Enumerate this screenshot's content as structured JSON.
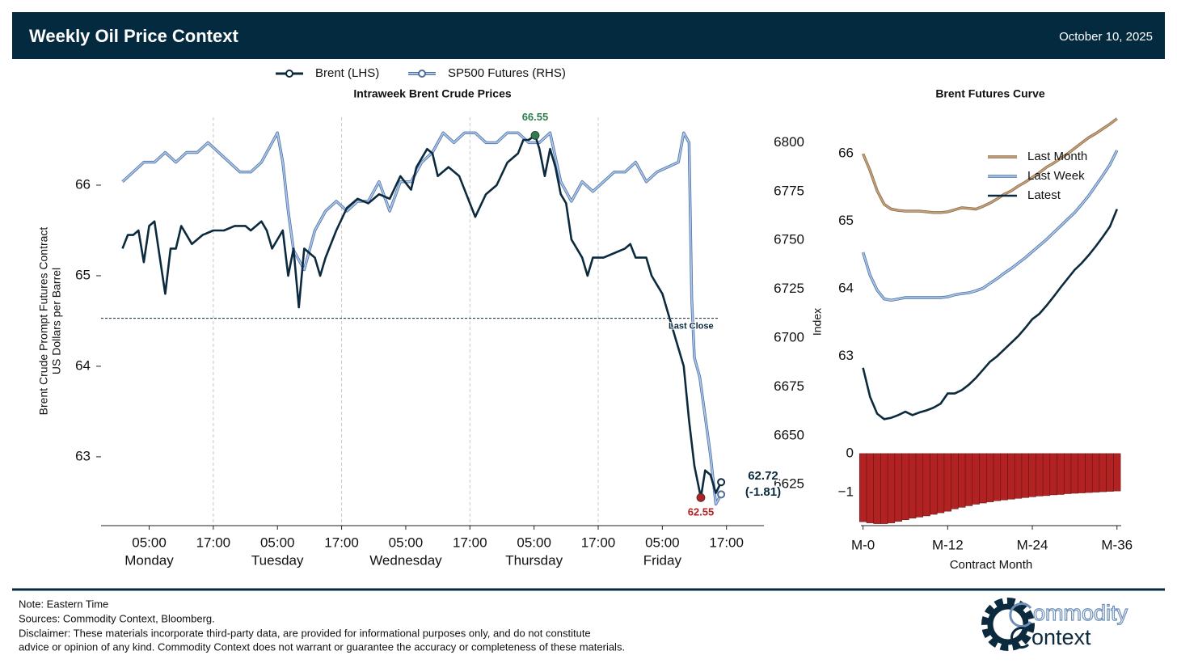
{
  "header": {
    "title": "Weekly Oil Price Context",
    "date": "October 10, 2025"
  },
  "chart_data": [
    {
      "type": "line",
      "title": "Intraweek Brent Crude Prices",
      "y_label": [
        "Brent Crude Prompt Futures Contract",
        "US Dollars per Barrel"
      ],
      "y2_label": "Index",
      "legend": "top",
      "xlim": [
        -4,
        120
      ],
      "ylim": [
        62.24,
        66.75
      ],
      "y2lim": [
        6604,
        6813
      ],
      "yticks": [
        63,
        64,
        65,
        66
      ],
      "y2ticks": [
        6625,
        6650,
        6675,
        6700,
        6725,
        6750,
        6775,
        6800
      ],
      "xticks": [
        {
          "value": 5,
          "label": [
            "05:00",
            "Monday"
          ]
        },
        {
          "value": 17,
          "label": [
            "17:00"
          ],
          "grid": true
        },
        {
          "value": 29,
          "label": [
            "05:00",
            "Tuesday"
          ]
        },
        {
          "value": 41,
          "label": [
            "17:00"
          ],
          "grid": true
        },
        {
          "value": 53,
          "label": [
            "05:00",
            "Wednesday"
          ]
        },
        {
          "value": 65,
          "label": [
            "17:00"
          ],
          "grid": true
        },
        {
          "value": 77,
          "label": [
            "05:00",
            "Thursday"
          ]
        },
        {
          "value": 89,
          "label": [
            "17:00"
          ],
          "grid": true
        },
        {
          "value": 101,
          "label": [
            "05:00",
            "Friday"
          ]
        },
        {
          "value": 113,
          "label": [
            "17:00"
          ]
        }
      ],
      "series": [
        {
          "name": "SP500 Futures (RHS)",
          "color": "#a9c6ef",
          "edge": "#4f6f9a",
          "axis": "y2",
          "x": [
            0,
            2,
            4,
            6,
            8,
            10,
            12,
            14,
            16,
            18,
            20,
            22,
            24,
            26,
            28,
            29,
            30,
            31,
            32,
            33,
            34,
            36,
            38,
            40,
            42,
            44,
            46,
            48,
            50,
            52,
            54,
            56,
            58,
            60,
            62,
            64,
            66,
            68,
            70,
            72,
            74,
            76,
            78,
            80,
            82,
            84,
            86,
            88,
            90,
            92,
            94,
            96,
            98,
            100,
            104,
            105,
            106,
            106.5,
            107,
            108,
            109,
            110,
            111,
            112
          ],
          "values": [
            6780,
            6785,
            6790,
            6790,
            6795,
            6790,
            6795,
            6795,
            6800,
            6795,
            6790,
            6785,
            6785,
            6790,
            6800,
            6805,
            6790,
            6765,
            6745,
            6740,
            6735,
            6755,
            6765,
            6770,
            6765,
            6770,
            6770,
            6780,
            6765,
            6780,
            6780,
            6790,
            6795,
            6805,
            6800,
            6805,
            6805,
            6800,
            6800,
            6805,
            6805,
            6800,
            6800,
            6805,
            6780,
            6770,
            6780,
            6775,
            6780,
            6785,
            6785,
            6790,
            6780,
            6785,
            6790,
            6805,
            6800,
            6720,
            6690,
            6680,
            6660,
            6640,
            6615,
            6620
          ]
        },
        {
          "name": "Brent (LHS)",
          "color": "#0c2a3e",
          "axis": "y",
          "x": [
            0,
            1,
            2,
            3,
            4,
            5,
            6,
            7,
            8,
            9,
            10,
            11,
            13,
            15,
            17,
            19,
            21,
            23,
            24,
            26,
            27,
            28,
            30,
            31,
            32,
            33,
            34,
            36,
            37,
            38,
            40,
            42,
            44,
            46,
            48,
            50,
            52,
            54,
            55,
            57,
            58,
            59,
            61,
            63,
            66,
            68,
            70,
            72,
            74,
            75,
            76,
            77.2,
            78,
            79,
            80,
            81,
            82,
            83,
            84,
            86,
            87,
            88,
            90,
            94,
            95,
            96,
            98,
            99,
            100,
            101,
            102,
            103,
            104,
            105,
            106,
            107,
            108.2,
            109,
            110,
            111,
            112
          ],
          "values": [
            65.3,
            65.45,
            65.45,
            65.5,
            65.15,
            65.55,
            65.6,
            65.2,
            64.8,
            65.3,
            65.3,
            65.55,
            65.35,
            65.45,
            65.5,
            65.5,
            65.55,
            65.55,
            65.5,
            65.6,
            65.5,
            65.3,
            65.5,
            65.0,
            65.3,
            64.65,
            65.3,
            65.2,
            65.0,
            65.2,
            65.5,
            65.75,
            65.85,
            65.8,
            65.9,
            65.85,
            66.1,
            65.95,
            66.2,
            66.4,
            66.35,
            66.1,
            66.2,
            66.1,
            65.65,
            65.9,
            66.0,
            66.25,
            66.35,
            66.5,
            66.5,
            66.55,
            66.4,
            66.1,
            66.4,
            66.2,
            65.9,
            65.8,
            65.4,
            65.2,
            65.0,
            65.2,
            65.2,
            65.3,
            65.35,
            65.2,
            65.2,
            65.0,
            64.9,
            64.8,
            64.6,
            64.4,
            64.2,
            64.0,
            63.4,
            62.9,
            62.55,
            62.85,
            62.8,
            62.6,
            62.72
          ]
        }
      ],
      "reference_line": {
        "label": "Last Close",
        "value": 64.53
      },
      "annotations": [
        {
          "label": "66.55",
          "x": 77.2,
          "value": 66.55,
          "color": "#2e7d4f"
        },
        {
          "label": "62.55",
          "x": 108.2,
          "value": 62.55,
          "color": "#b22222"
        }
      ],
      "last_label": {
        "label": "62.72",
        "change_label": "(-1.81)",
        "x": 112,
        "value": 62.72
      }
    },
    {
      "type": "line",
      "title": "Brent Futures Curve",
      "legend": "upper right",
      "xlim": [
        -0.3,
        36.6
      ],
      "ylim": [
        61.93,
        66.54
      ],
      "yticks": [
        63,
        64,
        65,
        66
      ],
      "series": [
        {
          "name": "Last Month",
          "color": "#c4a27c",
          "edge": "#8a6a45",
          "x": [
            0,
            1,
            2,
            3,
            4,
            5,
            6,
            7,
            8,
            9,
            10,
            11,
            12,
            13,
            14,
            15,
            16,
            17,
            18,
            19,
            20,
            21,
            22,
            23,
            24,
            25,
            26,
            27,
            28,
            29,
            30,
            31,
            32,
            33,
            34,
            35,
            36
          ],
          "values": [
            66.0,
            65.75,
            65.45,
            65.25,
            65.18,
            65.16,
            65.15,
            65.15,
            65.15,
            65.14,
            65.13,
            65.13,
            65.14,
            65.17,
            65.2,
            65.19,
            65.18,
            65.22,
            65.27,
            65.33,
            65.4,
            65.45,
            65.52,
            65.58,
            65.65,
            65.72,
            65.8,
            65.86,
            65.93,
            66.0,
            66.08,
            66.16,
            66.24,
            66.3,
            66.37,
            66.44,
            66.52
          ]
        },
        {
          "name": "Last Week",
          "color": "#a9c6ef",
          "edge": "#4f6f9a",
          "x": [
            0,
            1,
            2,
            3,
            4,
            5,
            6,
            7,
            8,
            9,
            10,
            11,
            12,
            13,
            14,
            15,
            16,
            17,
            18,
            19,
            20,
            21,
            22,
            23,
            24,
            25,
            26,
            27,
            28,
            29,
            30,
            31,
            32,
            33,
            34,
            35,
            36
          ],
          "values": [
            64.54,
            64.2,
            63.98,
            63.85,
            63.83,
            63.85,
            63.87,
            63.87,
            63.87,
            63.87,
            63.87,
            63.87,
            63.88,
            63.91,
            63.93,
            63.94,
            63.97,
            64.01,
            64.08,
            64.15,
            64.23,
            64.3,
            64.38,
            64.46,
            64.55,
            64.64,
            64.73,
            64.83,
            64.93,
            65.03,
            65.13,
            65.25,
            65.38,
            65.53,
            65.68,
            65.84,
            66.05
          ]
        },
        {
          "name": "Latest",
          "color": "#0c2a3e",
          "x": [
            0,
            1,
            2,
            3,
            4,
            5,
            6,
            7,
            8,
            9,
            10,
            11,
            12,
            13,
            14,
            15,
            16,
            17,
            18,
            19,
            20,
            21,
            22,
            23,
            24,
            25,
            26,
            27,
            28,
            29,
            30,
            31,
            32,
            33,
            34,
            35,
            36
          ],
          "values": [
            62.83,
            62.4,
            62.15,
            62.07,
            62.09,
            62.13,
            62.18,
            62.13,
            62.17,
            62.2,
            62.24,
            62.3,
            62.45,
            62.45,
            62.5,
            62.58,
            62.68,
            62.8,
            62.92,
            63.0,
            63.1,
            63.2,
            63.3,
            63.42,
            63.55,
            63.63,
            63.75,
            63.88,
            64.02,
            64.15,
            64.28,
            64.38,
            64.5,
            64.63,
            64.77,
            64.92,
            65.18
          ]
        }
      ]
    },
    {
      "type": "bar",
      "x_label": "Contract Month",
      "color": "#b22222",
      "xlim": [
        -0.3,
        36.6
      ],
      "ylim": [
        -1.85,
        0.06
      ],
      "yticks": [
        0,
        {
          "value": -1,
          "label": "−1"
        }
      ],
      "xticks": [
        {
          "value": 0,
          "label": "M-0"
        },
        {
          "value": 12,
          "label": "M-12"
        },
        {
          "value": 24,
          "label": "M-24"
        },
        {
          "value": 36,
          "label": "M-36"
        }
      ],
      "x": [
        0,
        1,
        2,
        3,
        4,
        5,
        6,
        7,
        8,
        9,
        10,
        11,
        12,
        13,
        14,
        15,
        16,
        17,
        18,
        19,
        20,
        21,
        22,
        23,
        24,
        25,
        26,
        27,
        28,
        29,
        30,
        31,
        32,
        33,
        34,
        35,
        36
      ],
      "values": [
        -1.75,
        -1.78,
        -1.8,
        -1.8,
        -1.78,
        -1.74,
        -1.7,
        -1.66,
        -1.63,
        -1.6,
        -1.56,
        -1.52,
        -1.48,
        -1.42,
        -1.38,
        -1.34,
        -1.3,
        -1.27,
        -1.24,
        -1.21,
        -1.19,
        -1.17,
        -1.15,
        -1.13,
        -1.11,
        -1.09,
        -1.08,
        -1.06,
        -1.05,
        -1.03,
        -1.02,
        -1.01,
        -1.0,
        -0.99,
        -0.98,
        -0.97,
        -0.96
      ]
    }
  ],
  "footer": {
    "note": "Note: Eastern Time",
    "sources": "Sources: Commodity Context, Bloomberg.",
    "disclaimer": [
      "Disclaimer: These materials incorporate third-party data, are provided for informational purposes only, and do not constitute",
      "advice or opinion of any kind. Commodity Context does not warrant or guarantee the accuracy or completeness of these materials."
    ]
  },
  "logo": {
    "line1": "ommodity",
    "line2": "ontext"
  }
}
